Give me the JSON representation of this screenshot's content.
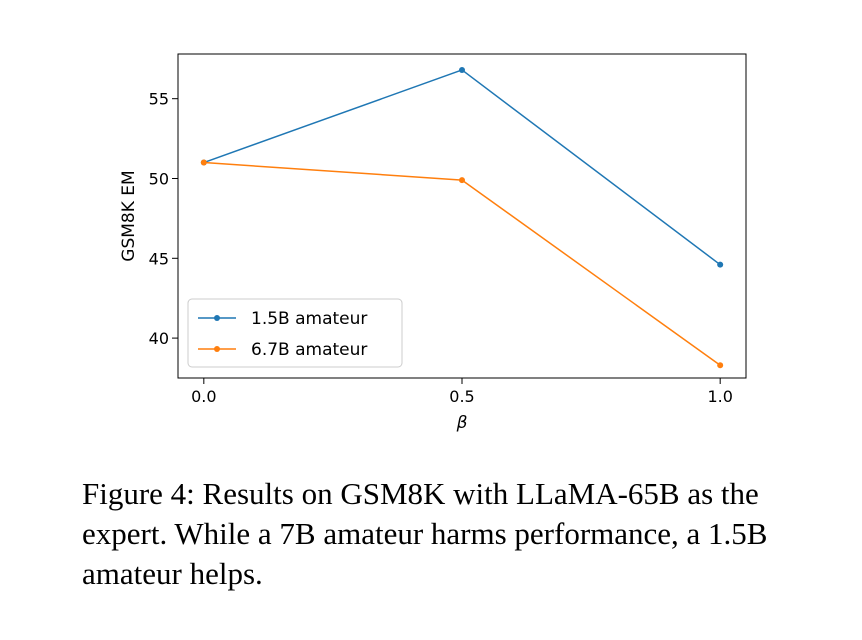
{
  "chart_data": {
    "type": "line",
    "xlabel": "β",
    "ylabel": "GSM8K EM",
    "x": [
      0.0,
      0.5,
      1.0
    ],
    "xticks": [
      "0.0",
      "0.5",
      "1.0"
    ],
    "yticks": [
      "40",
      "45",
      "50",
      "55"
    ],
    "xlim": [
      -0.05,
      1.05
    ],
    "ylim": [
      37.5,
      57.8
    ],
    "grid": false,
    "legend_position": "lower-left",
    "series": [
      {
        "name": "1.5B amateur",
        "color": "#1f77b4",
        "values": [
          51.0,
          56.8,
          44.6
        ]
      },
      {
        "name": "6.7B amateur",
        "color": "#ff7f0e",
        "values": [
          51.0,
          49.9,
          38.3
        ]
      }
    ]
  },
  "caption": "Figure 4: Results on GSM8K with LLaMA-65B as the expert. While a 7B amateur harms performance, a 1.5B amateur helps."
}
